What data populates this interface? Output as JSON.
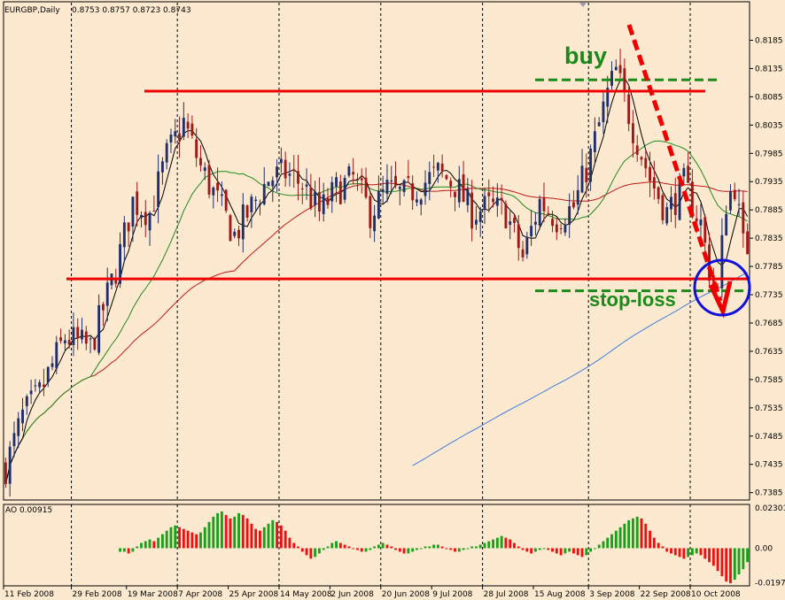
{
  "chart_data": {
    "type": "candlestick",
    "symbol_header": "EURGBP,Daily",
    "ohlc_header": "0.8753 0.8757 0.8723 0.8743",
    "price_axis": {
      "ticks": [
        "0.8185",
        "0.8135",
        "0.8085",
        "0.8035",
        "0.7985",
        "0.7935",
        "0.7885",
        "0.7835",
        "0.7785",
        "0.7735",
        "0.7685",
        "0.7635",
        "0.7585",
        "0.7535",
        "0.7485",
        "0.7435",
        "0.7385"
      ],
      "range": [
        0.7372,
        0.8228
      ]
    },
    "date_axis": [
      "11 Feb 2008",
      "29 Feb 2008",
      "19 Mar 2008",
      "7 Apr 2008",
      "25 Apr 2008",
      "14 May 2008",
      "2 Jun 2008",
      "20 Jun 2008",
      "9 Jul 2008",
      "28 Jul 2008",
      "15 Aug 2008",
      "3 Sep 2008",
      "22 Sep 2008",
      "10 Oct 2008"
    ],
    "key_points": [
      {
        "bar": 0,
        "price": 0.743
      },
      {
        "bar": 4,
        "price": 0.752
      },
      {
        "bar": 8,
        "price": 0.756
      },
      {
        "bar": 14,
        "price": 0.766
      },
      {
        "bar": 20,
        "price": 0.764
      },
      {
        "bar": 26,
        "price": 0.778
      },
      {
        "bar": 30,
        "price": 0.79
      },
      {
        "bar": 34,
        "price": 0.788
      },
      {
        "bar": 38,
        "price": 0.798
      },
      {
        "bar": 42,
        "price": 0.804
      },
      {
        "bar": 46,
        "price": 0.796
      },
      {
        "bar": 50,
        "price": 0.79
      },
      {
        "bar": 54,
        "price": 0.784
      },
      {
        "bar": 58,
        "price": 0.789
      },
      {
        "bar": 62,
        "price": 0.794
      },
      {
        "bar": 66,
        "price": 0.795
      },
      {
        "bar": 70,
        "price": 0.793
      },
      {
        "bar": 74,
        "price": 0.788
      },
      {
        "bar": 78,
        "price": 0.792
      },
      {
        "bar": 82,
        "price": 0.794
      },
      {
        "bar": 86,
        "price": 0.788
      },
      {
        "bar": 90,
        "price": 0.792
      },
      {
        "bar": 94,
        "price": 0.791
      },
      {
        "bar": 98,
        "price": 0.793
      },
      {
        "bar": 102,
        "price": 0.795
      },
      {
        "bar": 106,
        "price": 0.793
      },
      {
        "bar": 110,
        "price": 0.788
      },
      {
        "bar": 114,
        "price": 0.789
      },
      {
        "bar": 118,
        "price": 0.788
      },
      {
        "bar": 122,
        "price": 0.78
      },
      {
        "bar": 126,
        "price": 0.79
      },
      {
        "bar": 130,
        "price": 0.787
      },
      {
        "bar": 134,
        "price": 0.789
      },
      {
        "bar": 138,
        "price": 0.798
      },
      {
        "bar": 142,
        "price": 0.809
      },
      {
        "bar": 144,
        "price": 0.813
      },
      {
        "bar": 148,
        "price": 0.803
      },
      {
        "bar": 152,
        "price": 0.794
      },
      {
        "bar": 156,
        "price": 0.788
      },
      {
        "bar": 160,
        "price": 0.793
      },
      {
        "bar": 164,
        "price": 0.786
      },
      {
        "bar": 166,
        "price": 0.778
      },
      {
        "bar": 168,
        "price": 0.774
      },
      {
        "bar": 170,
        "price": 0.79
      },
      {
        "bar": 172,
        "price": 0.793
      },
      {
        "bar": 174,
        "price": 0.782
      }
    ],
    "resistance_level": 0.8095,
    "support_level": 0.7763,
    "buy_level": 0.8115,
    "stoploss_level": 0.7742,
    "indicator": {
      "label": "AO 0.00915",
      "ticks": [
        "0.02301",
        "0.00",
        "-0.01979"
      ],
      "range": [
        -0.0215,
        0.025
      ],
      "values": [
        -0.002,
        -0.002,
        -0.003,
        -0.002,
        0.001,
        0.003,
        0.004,
        0.005,
        0.004,
        0.006,
        0.008,
        0.01,
        0.012,
        0.013,
        0.012,
        0.011,
        0.01,
        0.009,
        0.008,
        0.009,
        0.012,
        0.015,
        0.018,
        0.02,
        0.021,
        0.019,
        0.017,
        0.018,
        0.02,
        0.019,
        0.017,
        0.014,
        0.011,
        0.01,
        0.012,
        0.014,
        0.016,
        0.015,
        0.013,
        0.01,
        0.006,
        0.003,
        0.001,
        -0.002,
        -0.004,
        -0.006,
        -0.005,
        -0.003,
        -0.001,
        0.001,
        0.003,
        0.004,
        0.003,
        0.002,
        0.001,
        0.0,
        -0.001,
        -0.002,
        -0.002,
        -0.001,
        0.001,
        0.002,
        0.003,
        0.002,
        0.001,
        -0.001,
        -0.002,
        -0.003,
        -0.003,
        -0.002,
        -0.001,
        0.0,
        0.001,
        0.001,
        0.002,
        0.002,
        0.001,
        0.0,
        -0.001,
        -0.002,
        -0.002,
        -0.001,
        0.0,
        0.001,
        0.001,
        0.002,
        0.003,
        0.004,
        0.005,
        0.006,
        0.007,
        0.006,
        0.005,
        0.003,
        0.001,
        -0.001,
        -0.002,
        -0.003,
        -0.002,
        -0.001,
        0.0,
        -0.001,
        -0.002,
        -0.003,
        -0.004,
        -0.003,
        -0.002,
        -0.003,
        -0.004,
        -0.005,
        -0.004,
        -0.002,
        0.0,
        0.002,
        0.004,
        0.006,
        0.008,
        0.01,
        0.012,
        0.014,
        0.016,
        0.017,
        0.018,
        0.017,
        0.014,
        0.01,
        0.006,
        0.003,
        0.001,
        -0.002,
        -0.003,
        -0.004,
        -0.005,
        -0.006,
        -0.005,
        -0.004,
        -0.003,
        -0.004,
        -0.006,
        -0.008,
        -0.01,
        -0.013,
        -0.016,
        -0.019,
        -0.02,
        -0.018,
        -0.015,
        -0.012,
        -0.008
      ]
    }
  },
  "annotations": {
    "buy_label": "buy",
    "stoploss_label": "stop-loss"
  },
  "colors": {
    "background": "#fde9cf",
    "bull_candle": "#1f2f6b",
    "bear_candle": "#a01818",
    "ma_fast": "#000000",
    "ma_green": "#1e8a1e",
    "ma_red": "#c01818",
    "ma_blue": "#3d7fe0",
    "level_line": "#ee0000",
    "annotation_green": "#1a8a1a",
    "circle": "#1010dd",
    "ao_up": "#18a018",
    "ao_down": "#ee1010"
  }
}
